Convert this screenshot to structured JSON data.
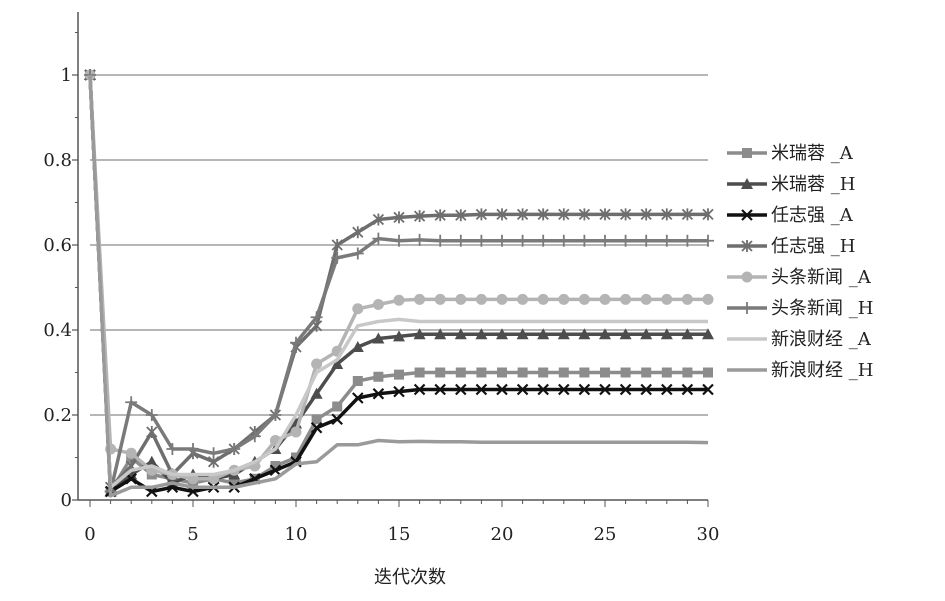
{
  "chart_data": {
    "type": "line",
    "title": "",
    "xlabel": "迭代次数",
    "ylabel": "",
    "xlim": [
      0,
      30
    ],
    "ylim": [
      0,
      1.2
    ],
    "x_ticks": [
      "0",
      "5",
      "10",
      "15",
      "20",
      "25",
      "30"
    ],
    "y_ticks": [
      "0",
      "0.2",
      "0.4",
      "0.6",
      "0.8",
      "1"
    ],
    "grid": true,
    "legend_position": "right",
    "x": [
      0,
      1,
      2,
      3,
      4,
      5,
      6,
      7,
      8,
      9,
      10,
      11,
      12,
      13,
      14,
      15,
      16,
      17,
      18,
      19,
      20,
      21,
      22,
      23,
      24,
      25,
      26,
      27,
      28,
      29,
      30
    ],
    "series": [
      {
        "name": "米瑞蓉 _A",
        "color": "#8c8c8c",
        "marker": "square",
        "values": [
          1,
          0.02,
          0.1,
          0.06,
          0.05,
          0.04,
          0.05,
          0.04,
          0.05,
          0.08,
          0.1,
          0.19,
          0.22,
          0.28,
          0.29,
          0.295,
          0.3,
          0.3,
          0.3,
          0.3,
          0.3,
          0.3,
          0.3,
          0.3,
          0.3,
          0.3,
          0.3,
          0.3,
          0.3,
          0.3,
          0.3
        ]
      },
      {
        "name": "米瑞蓉 _H",
        "color": "#4d4d4d",
        "marker": "triangle",
        "values": [
          1,
          0.02,
          0.06,
          0.09,
          0.04,
          0.06,
          0.05,
          0.06,
          0.09,
          0.12,
          0.18,
          0.25,
          0.32,
          0.36,
          0.38,
          0.385,
          0.39,
          0.39,
          0.39,
          0.39,
          0.39,
          0.39,
          0.39,
          0.39,
          0.39,
          0.39,
          0.39,
          0.39,
          0.39,
          0.39,
          0.39
        ]
      },
      {
        "name": "任志强 _A",
        "color": "#111111",
        "marker": "x",
        "values": [
          1,
          0.02,
          0.05,
          0.02,
          0.03,
          0.02,
          0.03,
          0.03,
          0.05,
          0.07,
          0.09,
          0.17,
          0.19,
          0.24,
          0.25,
          0.255,
          0.26,
          0.26,
          0.26,
          0.26,
          0.26,
          0.26,
          0.26,
          0.26,
          0.26,
          0.26,
          0.26,
          0.26,
          0.26,
          0.26,
          0.26
        ]
      },
      {
        "name": "任志强 _H",
        "color": "#6e6e6e",
        "marker": "asterisk",
        "values": [
          1,
          0.03,
          0.08,
          0.16,
          0.06,
          0.11,
          0.09,
          0.12,
          0.16,
          0.2,
          0.36,
          0.41,
          0.6,
          0.63,
          0.66,
          0.665,
          0.668,
          0.67,
          0.67,
          0.672,
          0.672,
          0.672,
          0.672,
          0.672,
          0.672,
          0.672,
          0.672,
          0.672,
          0.672,
          0.672,
          0.672
        ]
      },
      {
        "name": "头条新闻 _A",
        "color": "#b4b4b4",
        "marker": "circle",
        "values": [
          1,
          0.12,
          0.11,
          0.07,
          0.06,
          0.05,
          0.05,
          0.07,
          0.08,
          0.14,
          0.16,
          0.32,
          0.35,
          0.45,
          0.46,
          0.47,
          0.472,
          0.472,
          0.472,
          0.472,
          0.472,
          0.472,
          0.472,
          0.472,
          0.472,
          0.472,
          0.472,
          0.472,
          0.472,
          0.472,
          0.472
        ]
      },
      {
        "name": "头条新闻 _H",
        "color": "#7a7a7a",
        "marker": "plus",
        "values": [
          1,
          0.02,
          0.23,
          0.2,
          0.12,
          0.12,
          0.11,
          0.12,
          0.15,
          0.2,
          0.37,
          0.43,
          0.57,
          0.58,
          0.615,
          0.61,
          0.612,
          0.61,
          0.61,
          0.61,
          0.61,
          0.61,
          0.61,
          0.61,
          0.61,
          0.61,
          0.61,
          0.61,
          0.61,
          0.61,
          0.61
        ]
      },
      {
        "name": "新浪财经 _A",
        "color": "#c8c8c8",
        "marker": "none",
        "values": [
          1,
          0.03,
          0.07,
          0.08,
          0.06,
          0.06,
          0.06,
          0.07,
          0.09,
          0.12,
          0.2,
          0.3,
          0.33,
          0.41,
          0.42,
          0.425,
          0.42,
          0.42,
          0.42,
          0.42,
          0.42,
          0.42,
          0.42,
          0.42,
          0.42,
          0.42,
          0.42,
          0.42,
          0.42,
          0.42,
          0.42
        ]
      },
      {
        "name": "新浪财经 _H",
        "color": "#9a9a9a",
        "marker": "none",
        "values": [
          1,
          0.01,
          0.03,
          0.03,
          0.04,
          0.03,
          0.03,
          0.03,
          0.04,
          0.05,
          0.085,
          0.09,
          0.13,
          0.13,
          0.14,
          0.137,
          0.138,
          0.137,
          0.137,
          0.136,
          0.136,
          0.136,
          0.136,
          0.136,
          0.136,
          0.136,
          0.136,
          0.136,
          0.136,
          0.136,
          0.135
        ]
      }
    ]
  }
}
